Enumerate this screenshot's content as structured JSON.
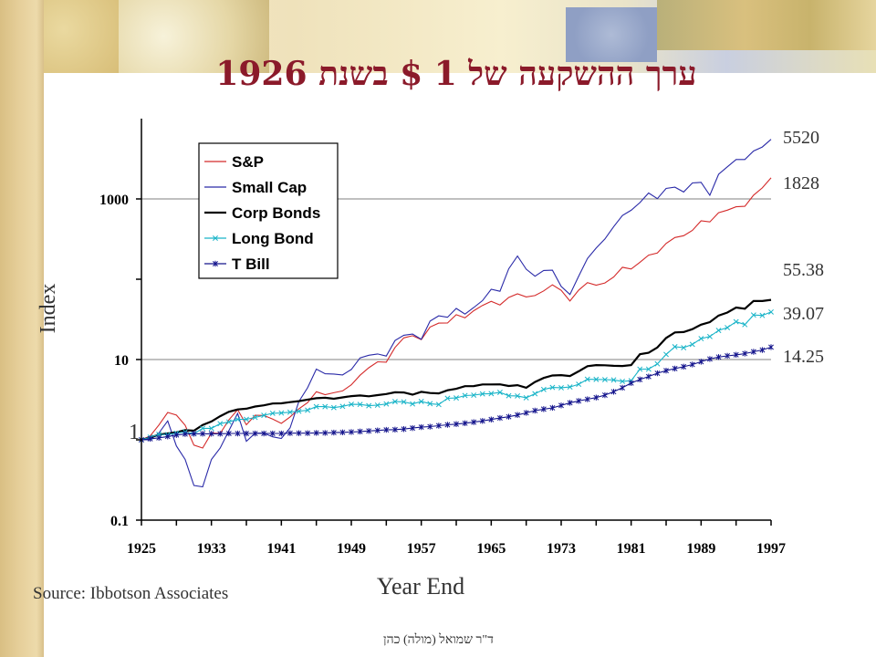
{
  "title": "ערך ההשקעה של 1 $ בשנת 1926",
  "source": "Source: Ibbotson Associates",
  "footer": "ד\"ר שמואל (מולה) כהן",
  "colors": {
    "sp": "#d42a2a",
    "smallcap": "#2a2aa8",
    "corpbonds": "#000000",
    "longbond": "#19b4c8",
    "tbill": "#14148c",
    "title": "#8b1a2a"
  },
  "chart_data": {
    "type": "line",
    "scale": "log",
    "xlabel": "Year End",
    "ylabel": "Index",
    "xlim": [
      1925,
      1997
    ],
    "ylim": [
      0.1,
      10000
    ],
    "xticks": [
      "1925",
      "1933",
      "1941",
      "1949",
      "1957",
      "1965",
      "1973",
      "1981",
      "1989",
      "1997"
    ],
    "yticks": [
      "0.1",
      "10",
      "1000"
    ],
    "extra_ylabel": "1",
    "gridlines": [
      10,
      1000
    ],
    "legend_position": "top-left",
    "end_labels": [
      "5520",
      "1828",
      "55.38",
      "39.07",
      "14.25"
    ],
    "x": [
      1925,
      1926,
      1927,
      1928,
      1929,
      1930,
      1931,
      1932,
      1933,
      1934,
      1935,
      1936,
      1937,
      1938,
      1939,
      1940,
      1941,
      1942,
      1943,
      1944,
      1945,
      1946,
      1947,
      1948,
      1949,
      1950,
      1951,
      1952,
      1953,
      1954,
      1955,
      1956,
      1957,
      1958,
      1959,
      1960,
      1961,
      1962,
      1963,
      1964,
      1965,
      1966,
      1967,
      1968,
      1969,
      1970,
      1971,
      1972,
      1973,
      1974,
      1975,
      1976,
      1977,
      1978,
      1979,
      1980,
      1981,
      1982,
      1983,
      1984,
      1985,
      1986,
      1987,
      1988,
      1989,
      1990,
      1991,
      1992,
      1993,
      1994,
      1995,
      1996,
      1997
    ],
    "series": [
      {
        "name": "S&P",
        "color": "sp",
        "marker": "none",
        "end": "1828",
        "values": [
          1.0,
          1.12,
          1.53,
          2.19,
          2.03,
          1.52,
          0.86,
          0.79,
          1.21,
          1.2,
          1.77,
          2.37,
          1.54,
          2.02,
          2.01,
          1.81,
          1.6,
          1.93,
          2.43,
          2.91,
          3.97,
          3.65,
          3.86,
          4.07,
          4.84,
          6.38,
          7.91,
          9.36,
          9.27,
          14.13,
          18.6,
          19.82,
          17.68,
          25.36,
          28.38,
          28.51,
          36.17,
          33.02,
          40.56,
          47.24,
          53.13,
          47.79,
          59.25,
          65.81,
          60.22,
          62.63,
          71.6,
          85.17,
          72.68,
          53.44,
          73.34,
          90.83,
          84.33,
          89.86,
          106.43,
          140.94,
          134.01,
          162.62,
          199.34,
          211.73,
          279.0,
          330.64,
          348.0,
          405.71,
          533.66,
          516.91,
          674.23,
          725.55,
          798.6,
          809.16,
          1113.9,
          1370.95,
          1828.33
        ]
      },
      {
        "name": "Small Cap",
        "color": "smallcap",
        "marker": "none",
        "end": "5520",
        "values": [
          1.0,
          1.0,
          1.22,
          1.72,
          0.84,
          0.57,
          0.27,
          0.26,
          0.57,
          0.79,
          1.3,
          2.13,
          0.96,
          1.21,
          1.21,
          1.09,
          1.04,
          1.41,
          2.99,
          4.45,
          7.6,
          6.64,
          6.59,
          6.43,
          7.52,
          10.48,
          11.31,
          11.73,
          11.04,
          17.25,
          20.07,
          20.76,
          17.87,
          30.07,
          34.99,
          33.6,
          43.28,
          36.83,
          44.48,
          54.28,
          75.06,
          70.72,
          134.86,
          194.53,
          133.44,
          109.16,
          128.53,
          129.71,
          81.26,
          64.67,
          109.23,
          181.17,
          244.33,
          317.13,
          451.42,
          621.2,
          722.7,
          901.33,
          1184.71,
          1008.06,
          1352.0,
          1402.0,
          1219.0,
          1580.0,
          1612.0,
          1109.0,
          2026.0,
          2509.0,
          3094.0,
          3094.0,
          3950.0,
          4435.0,
          5519.97
        ]
      },
      {
        "name": "Corp Bonds",
        "color": "corpbonds",
        "marker": "none",
        "end": "55.38",
        "values": [
          1.0,
          1.07,
          1.16,
          1.2,
          1.24,
          1.32,
          1.3,
          1.53,
          1.69,
          1.97,
          2.23,
          2.39,
          2.44,
          2.6,
          2.69,
          2.83,
          2.85,
          2.95,
          3.03,
          3.17,
          3.3,
          3.34,
          3.25,
          3.38,
          3.5,
          3.57,
          3.48,
          3.6,
          3.72,
          3.91,
          3.89,
          3.65,
          3.96,
          3.83,
          3.79,
          4.14,
          4.32,
          4.66,
          4.67,
          4.9,
          4.89,
          4.91,
          4.68,
          4.8,
          4.45,
          5.26,
          5.89,
          6.32,
          6.4,
          6.23,
          7.13,
          8.27,
          8.53,
          8.49,
          8.35,
          8.31,
          8.53,
          11.63,
          12.15,
          14.12,
          18.53,
          21.78,
          21.99,
          23.89,
          27.17,
          29.26,
          35.32,
          38.5,
          44.45,
          42.92,
          53.67,
          53.46,
          55.38
        ]
      },
      {
        "name": "Long Bond",
        "color": "longbond",
        "marker": "x",
        "end": "39.07",
        "values": [
          1.0,
          1.08,
          1.17,
          1.16,
          1.21,
          1.26,
          1.19,
          1.39,
          1.39,
          1.59,
          1.67,
          1.8,
          1.8,
          1.9,
          2.02,
          2.14,
          2.16,
          2.21,
          2.27,
          2.34,
          2.59,
          2.59,
          2.52,
          2.61,
          2.77,
          2.76,
          2.66,
          2.7,
          2.8,
          2.99,
          2.97,
          2.8,
          3.0,
          2.82,
          2.75,
          3.29,
          3.32,
          3.56,
          3.6,
          3.73,
          3.76,
          3.9,
          3.54,
          3.52,
          3.34,
          3.75,
          4.24,
          4.49,
          4.45,
          4.55,
          4.92,
          5.68,
          5.66,
          5.62,
          5.57,
          5.35,
          5.45,
          7.59,
          7.59,
          8.84,
          11.58,
          14.43,
          14.04,
          15.43,
          18.22,
          19.34,
          23.03,
          24.97,
          29.57,
          27.23,
          35.83,
          35.37,
          39.07
        ]
      },
      {
        "name": "T Bill",
        "color": "tbill",
        "marker": "star",
        "end": "14.25",
        "values": [
          1.0,
          1.03,
          1.06,
          1.1,
          1.15,
          1.18,
          1.19,
          1.19,
          1.19,
          1.19,
          1.2,
          1.2,
          1.2,
          1.2,
          1.2,
          1.2,
          1.2,
          1.21,
          1.21,
          1.21,
          1.22,
          1.22,
          1.23,
          1.24,
          1.25,
          1.27,
          1.29,
          1.31,
          1.33,
          1.34,
          1.36,
          1.4,
          1.44,
          1.46,
          1.5,
          1.54,
          1.57,
          1.61,
          1.66,
          1.72,
          1.79,
          1.87,
          1.94,
          2.04,
          2.17,
          2.31,
          2.41,
          2.5,
          2.68,
          2.89,
          3.05,
          3.2,
          3.36,
          3.6,
          3.97,
          4.45,
          5.09,
          5.64,
          6.14,
          6.75,
          7.27,
          7.72,
          8.14,
          8.67,
          9.4,
          10.16,
          10.73,
          11.11,
          11.44,
          11.86,
          12.49,
          13.15,
          14.25
        ]
      }
    ]
  }
}
